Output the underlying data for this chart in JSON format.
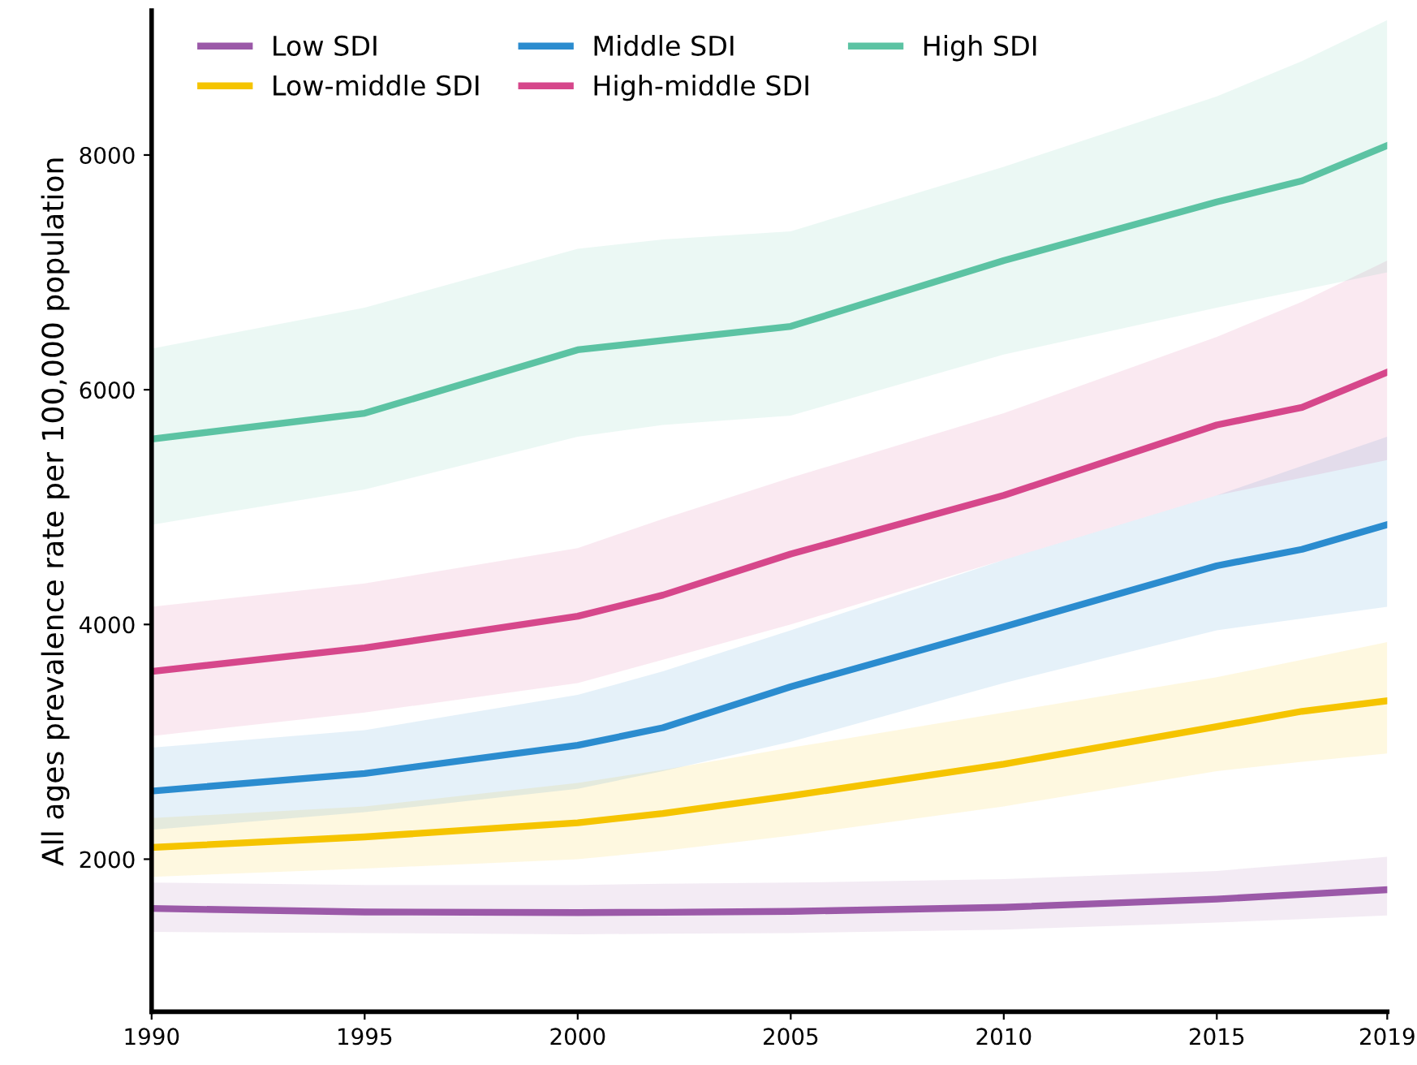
{
  "chart_data": {
    "type": "line",
    "ylabel": "All ages prevalence rate per 100,000 population",
    "x": [
      1990,
      1995,
      2000,
      2002,
      2005,
      2010,
      2015,
      2017,
      2019
    ],
    "xlim": [
      1990,
      2019
    ],
    "xticks": [
      1990,
      1995,
      2000,
      2005,
      2010,
      2015,
      2019
    ],
    "ylim": [
      700,
      9230
    ],
    "yticks": [
      2000,
      4000,
      6000,
      8000
    ],
    "grid": false,
    "legend": "top left",
    "marker": "none",
    "line_style": "solid",
    "series": [
      {
        "name": "Low SDI",
        "color": "#9b59a8",
        "values": [
          1580,
          1550,
          1545,
          1548,
          1555,
          1590,
          1660,
          1700,
          1740
        ],
        "lower": [
          1380,
          1370,
          1360,
          1365,
          1370,
          1400,
          1460,
          1490,
          1520
        ],
        "upper": [
          1800,
          1780,
          1780,
          1790,
          1800,
          1830,
          1900,
          1960,
          2020
        ]
      },
      {
        "name": "Low-middle SDI",
        "color": "#f5c400",
        "values": [
          2100,
          2190,
          2310,
          2390,
          2540,
          2810,
          3130,
          3260,
          3350
        ],
        "lower": [
          1850,
          1920,
          2000,
          2070,
          2200,
          2450,
          2750,
          2830,
          2900
        ],
        "upper": [
          2350,
          2450,
          2650,
          2760,
          2950,
          3250,
          3550,
          3700,
          3850
        ]
      },
      {
        "name": "Middle SDI",
        "color": "#2b8ccf",
        "values": [
          2580,
          2730,
          2970,
          3120,
          3470,
          3980,
          4500,
          4640,
          4850
        ],
        "lower": [
          2250,
          2400,
          2600,
          2750,
          3000,
          3500,
          3950,
          4050,
          4150
        ],
        "upper": [
          2950,
          3100,
          3400,
          3600,
          3950,
          4550,
          5100,
          5350,
          5600
        ]
      },
      {
        "name": "High-middle SDI",
        "color": "#d6478b",
        "values": [
          3600,
          3800,
          4070,
          4250,
          4600,
          5100,
          5700,
          5850,
          6150
        ],
        "lower": [
          3050,
          3250,
          3500,
          3700,
          4000,
          4550,
          5100,
          5250,
          5400
        ],
        "upper": [
          4150,
          4350,
          4650,
          4900,
          5250,
          5800,
          6450,
          6750,
          7100
        ]
      },
      {
        "name": "High SDI",
        "color": "#5cc3a3",
        "values": [
          5580,
          5800,
          6340,
          6420,
          6540,
          7100,
          7600,
          7780,
          8080
        ],
        "lower": [
          4850,
          5150,
          5600,
          5700,
          5780,
          6300,
          6700,
          6850,
          7000
        ],
        "upper": [
          6350,
          6700,
          7200,
          7280,
          7350,
          7900,
          8500,
          8800,
          9150
        ]
      }
    ]
  }
}
